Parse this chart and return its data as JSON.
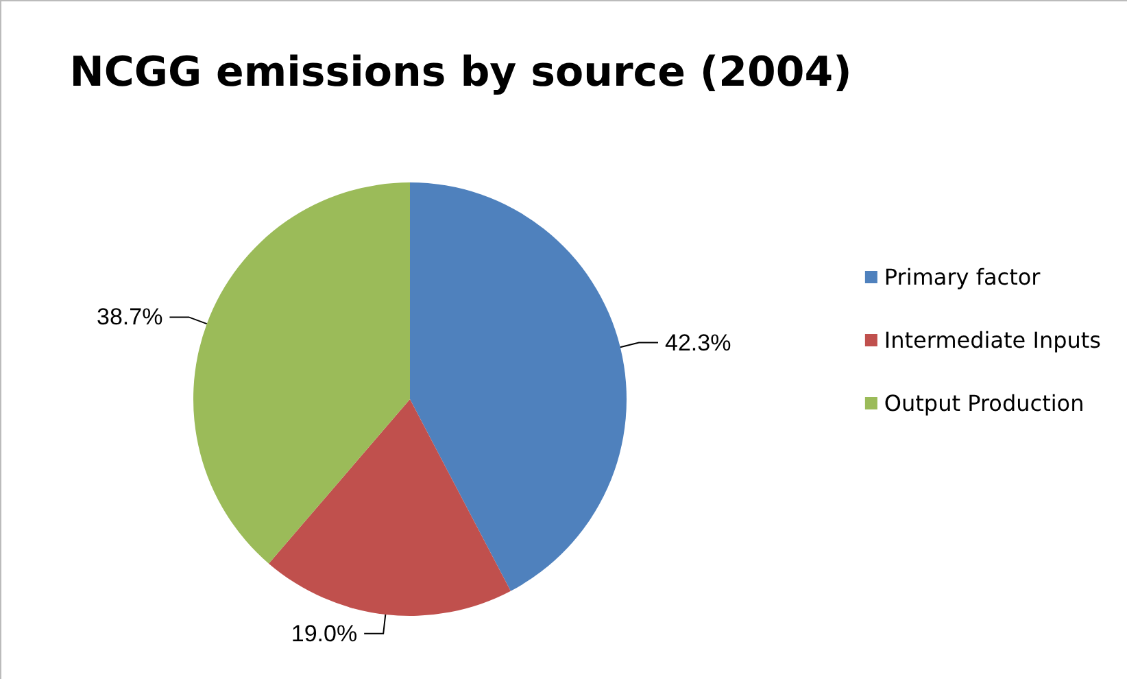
{
  "chart_data": {
    "type": "pie",
    "title": "NCGG emissions by source (2004)",
    "categories": [
      "Primary factor",
      "Intermediate Inputs",
      "Output Production"
    ],
    "values": [
      42.3,
      19.0,
      38.7
    ],
    "colors": [
      "#4f81bd",
      "#c0504d",
      "#9bbb59"
    ],
    "value_labels": [
      "42.3%",
      "19.0%",
      "38.7%"
    ],
    "legend": "right"
  }
}
